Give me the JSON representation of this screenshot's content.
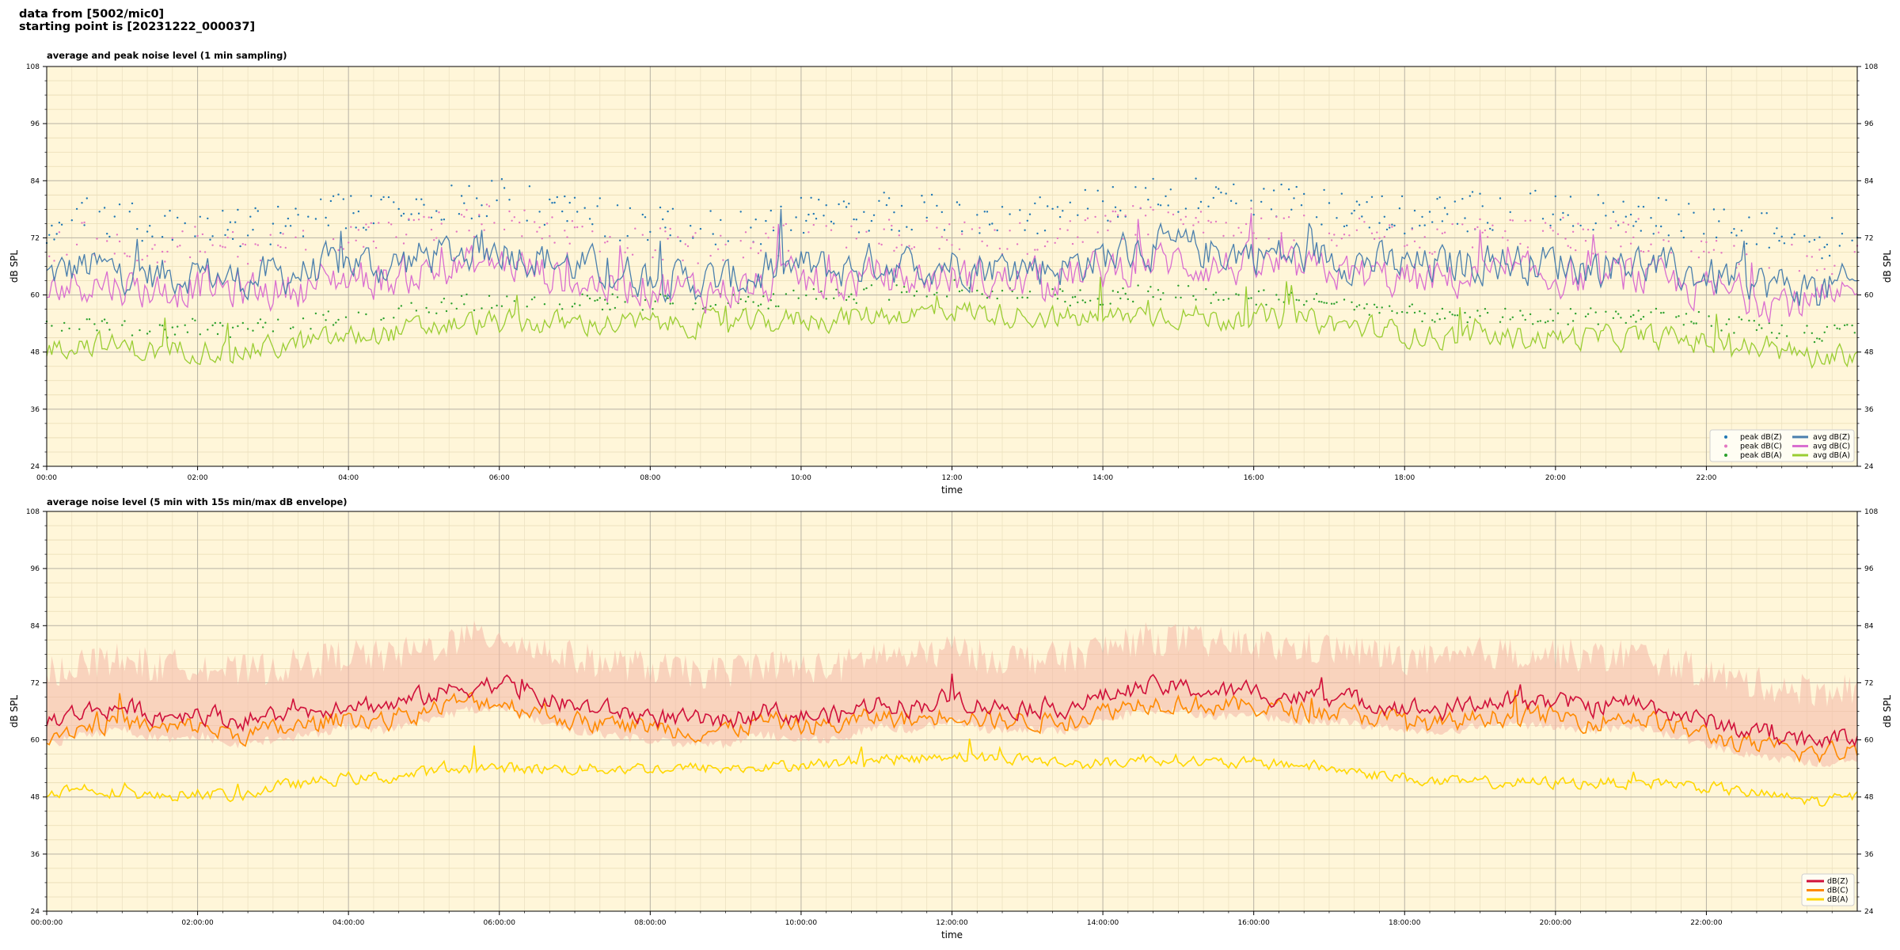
{
  "header": {
    "line1": "data from [5002/mic0]",
    "line2": "starting point is [20231222_000037]"
  },
  "colors": {
    "plot_bg": "#fff6d9",
    "peak_z": "#1f77b4",
    "peak_c": "#e377c2",
    "peak_a": "#2ca02c",
    "avg_z": "#4a7fad",
    "avg_c": "#d96ed0",
    "avg_a": "#9acd32",
    "z5": "#d0103a",
    "c5": "#ff8a00",
    "a5": "#ffd700",
    "envelope": "#f4b6a6"
  },
  "chart_data": [
    {
      "type": "line+scatter",
      "title": "average and peak noise level (1 min sampling)",
      "xlabel": "time",
      "ylabel": "dB SPL",
      "x_range_hours": [
        0,
        24
      ],
      "ylim": [
        24,
        108
      ],
      "yticks": [
        24,
        36,
        48,
        60,
        72,
        84,
        96,
        108
      ],
      "xtick_labels": [
        "00:00",
        "02:00",
        "04:00",
        "06:00",
        "08:00",
        "10:00",
        "12:00",
        "14:00",
        "16:00",
        "18:00",
        "20:00",
        "22:00"
      ],
      "grid": true,
      "legend_position": "bottom-right",
      "hours": [
        0,
        0.5,
        1,
        1.5,
        2,
        2.5,
        3,
        3.5,
        4,
        4.5,
        5,
        5.5,
        6,
        6.5,
        7,
        7.5,
        8,
        8.5,
        9,
        9.5,
        10,
        10.5,
        11,
        11.5,
        12,
        12.5,
        13,
        13.5,
        14,
        14.5,
        15,
        15.5,
        16,
        16.5,
        17,
        17.5,
        18,
        18.5,
        19,
        19.5,
        20,
        20.5,
        21,
        21.5,
        22,
        22.5,
        23,
        23.5,
        24
      ],
      "series": [
        {
          "name": "avg dB(Z)",
          "kind": "line",
          "values": [
            64,
            66,
            65,
            64,
            65,
            63,
            64,
            65,
            67,
            66,
            68,
            69,
            70,
            68,
            66,
            65,
            64,
            63,
            63,
            64,
            66,
            65,
            67,
            66,
            67,
            66,
            66,
            66,
            68,
            70,
            70,
            69,
            69,
            68,
            68,
            67,
            66,
            66,
            67,
            67,
            67,
            66,
            67,
            65,
            64,
            63,
            62,
            61,
            62
          ]
        },
        {
          "name": "avg dB(C)",
          "kind": "line",
          "values": [
            61,
            63,
            62,
            61,
            62,
            61,
            61,
            62,
            64,
            63,
            65,
            66,
            67,
            65,
            63,
            62,
            62,
            61,
            61,
            62,
            63,
            62,
            64,
            63,
            64,
            63,
            63,
            64,
            65,
            67,
            67,
            66,
            66,
            65,
            65,
            64,
            63,
            63,
            64,
            64,
            64,
            63,
            64,
            62,
            61,
            60,
            59,
            58,
            59
          ]
        },
        {
          "name": "avg dB(A)",
          "kind": "line",
          "values": [
            49,
            50,
            49,
            48,
            49,
            48,
            49,
            50,
            51,
            52,
            53,
            54,
            54,
            54,
            54,
            54,
            54,
            54,
            54,
            54,
            55,
            55,
            56,
            56,
            57,
            56,
            56,
            55,
            55,
            56,
            56,
            55,
            55,
            55,
            54,
            53,
            52,
            51,
            51,
            51,
            51,
            51,
            51,
            51,
            50,
            49,
            48,
            47,
            48
          ]
        },
        {
          "name": "peak dB(Z)",
          "kind": "scatter",
          "offset_db": 12
        },
        {
          "name": "peak dB(C)",
          "kind": "scatter",
          "offset_db": 10
        },
        {
          "name": "peak dB(A)",
          "kind": "scatter",
          "offset_db": 5
        }
      ],
      "legend": [
        "peak dB(Z)",
        "peak dB(C)",
        "peak dB(A)",
        "avg dB(Z)",
        "avg dB(C)",
        "avg dB(A)"
      ]
    },
    {
      "type": "line+area",
      "title": "average noise level (5 min with 15s min/max dB envelope)",
      "xlabel": "time",
      "ylabel": "dB SPL",
      "x_range_hours": [
        0,
        24
      ],
      "ylim": [
        24,
        108
      ],
      "yticks": [
        24,
        36,
        48,
        60,
        72,
        84,
        96,
        108
      ],
      "xtick_labels": [
        "00:00:00",
        "02:00:00",
        "04:00:00",
        "06:00:00",
        "08:00:00",
        "10:00:00",
        "12:00:00",
        "14:00:00",
        "16:00:00",
        "18:00:00",
        "20:00:00",
        "22:00:00"
      ],
      "grid": true,
      "legend_position": "bottom-right",
      "hours": [
        0,
        0.5,
        1,
        1.5,
        2,
        2.5,
        3,
        3.5,
        4,
        4.5,
        5,
        5.5,
        6,
        6.5,
        7,
        7.5,
        8,
        8.5,
        9,
        9.5,
        10,
        10.5,
        11,
        11.5,
        12,
        12.5,
        13,
        13.5,
        14,
        14.5,
        15,
        15.5,
        16,
        16.5,
        17,
        17.5,
        18,
        18.5,
        19,
        19.5,
        20,
        20.5,
        21,
        21.5,
        22,
        22.5,
        23,
        23.5,
        24
      ],
      "series": [
        {
          "name": "dB(Z)",
          "kind": "line",
          "values": [
            64,
            66,
            67,
            65,
            66,
            64,
            65,
            66,
            68,
            67,
            69,
            71,
            72,
            69,
            67,
            66,
            65,
            64,
            64,
            66,
            65,
            65,
            68,
            67,
            69,
            67,
            67,
            67,
            69,
            71,
            71,
            70,
            70,
            69,
            69,
            68,
            67,
            66,
            68,
            68,
            68,
            67,
            68,
            66,
            64,
            62,
            61,
            60,
            61
          ]
        },
        {
          "name": "dB(C)",
          "kind": "line",
          "values": [
            61,
            63,
            64,
            62,
            63,
            61,
            62,
            63,
            65,
            64,
            66,
            68,
            68,
            66,
            64,
            63,
            63,
            62,
            62,
            64,
            63,
            63,
            65,
            64,
            66,
            64,
            64,
            64,
            66,
            68,
            68,
            67,
            67,
            66,
            66,
            65,
            64,
            63,
            65,
            65,
            65,
            64,
            65,
            63,
            61,
            59,
            58,
            57,
            58
          ]
        },
        {
          "name": "dB(A)",
          "kind": "line",
          "values": [
            49,
            50,
            49,
            48,
            49,
            48,
            50,
            51,
            52,
            52,
            53,
            54,
            54,
            54,
            54,
            54,
            54,
            54,
            54,
            54,
            55,
            55,
            56,
            56,
            57,
            56,
            56,
            55,
            55,
            56,
            56,
            55,
            55,
            55,
            54,
            53,
            52,
            51,
            51,
            51,
            51,
            51,
            51,
            51,
            50,
            49,
            48,
            47,
            48
          ]
        },
        {
          "name": "envelope",
          "kind": "area",
          "min_offset_db": -4,
          "max_offset_db": 12
        }
      ],
      "legend": [
        "dB(Z)",
        "dB(C)",
        "dB(A)"
      ]
    }
  ]
}
